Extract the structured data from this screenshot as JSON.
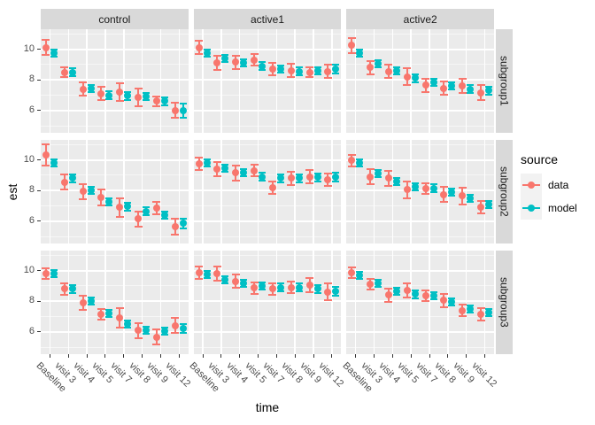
{
  "chart_data": {
    "type": "pointrange-facet-grid",
    "xlabel": "time",
    "ylabel": "est",
    "x_categories": [
      "Baseline",
      "visit 3",
      "visit 4",
      "visit 5",
      "visit 7",
      "visit 8",
      "visit 9",
      "visit 12"
    ],
    "facet_cols": [
      "control",
      "active1",
      "active2"
    ],
    "facet_rows": [
      "subgroup1",
      "subgroup2",
      "subgroup3"
    ],
    "y_ticks": [
      10,
      8,
      6
    ],
    "y_minor_ticks": [
      5,
      7,
      9,
      11
    ],
    "ylim": [
      4.55,
      11.3
    ],
    "grid": true,
    "legend": {
      "title": "source",
      "position": "right",
      "entries": [
        {
          "label": "data",
          "color": "#F8766D"
        },
        {
          "label": "model",
          "color": "#00BFC4"
        }
      ]
    },
    "panels": [
      {
        "facet_col": "control",
        "facet_row": "subgroup1",
        "series": [
          {
            "name": "data",
            "est": [
              10.1,
              8.5,
              7.4,
              7.1,
              7.2,
              6.85,
              6.6,
              6.0
            ],
            "lo": [
              9.55,
              8.1,
              6.9,
              6.6,
              6.55,
              6.2,
              6.25,
              5.45
            ],
            "hi": [
              10.65,
              8.9,
              7.9,
              7.6,
              7.85,
              7.5,
              6.95,
              6.55
            ]
          },
          {
            "name": "model",
            "est": [
              9.75,
              8.5,
              7.45,
              7.0,
              6.95,
              6.9,
              6.6,
              6.0
            ],
            "lo": [
              9.45,
              8.2,
              7.15,
              6.7,
              6.65,
              6.6,
              6.3,
              5.5
            ],
            "hi": [
              10.05,
              8.8,
              7.75,
              7.3,
              7.25,
              7.2,
              6.9,
              6.5
            ]
          }
        ]
      },
      {
        "facet_col": "active1",
        "facet_row": "subgroup1",
        "series": [
          {
            "name": "data",
            "est": [
              10.1,
              9.1,
              9.15,
              9.3,
              8.7,
              8.6,
              8.5,
              8.55
            ],
            "lo": [
              9.6,
              8.6,
              8.65,
              8.85,
              8.25,
              8.1,
              8.1,
              8.05
            ],
            "hi": [
              10.6,
              9.6,
              9.65,
              9.75,
              9.15,
              9.1,
              8.9,
              9.05
            ]
          },
          {
            "name": "model",
            "est": [
              9.75,
              9.4,
              9.1,
              8.9,
              8.7,
              8.55,
              8.6,
              8.7
            ],
            "lo": [
              9.45,
              9.1,
              8.8,
              8.6,
              8.4,
              8.25,
              8.3,
              8.35
            ],
            "hi": [
              10.05,
              9.7,
              9.4,
              9.2,
              9.0,
              8.85,
              8.9,
              9.05
            ]
          }
        ]
      },
      {
        "facet_col": "active2",
        "facet_row": "subgroup1",
        "series": [
          {
            "name": "data",
            "est": [
              10.25,
              8.8,
              8.55,
              8.2,
              7.65,
              7.45,
              7.6,
              7.15
            ],
            "lo": [
              9.7,
              8.3,
              8.05,
              7.6,
              7.15,
              6.95,
              7.1,
              6.6
            ],
            "hi": [
              10.8,
              9.3,
              9.05,
              8.8,
              8.15,
              7.95,
              8.1,
              7.7
            ]
          },
          {
            "name": "model",
            "est": [
              9.75,
              9.05,
              8.6,
              8.1,
              7.85,
              7.6,
              7.4,
              7.3
            ],
            "lo": [
              9.45,
              8.75,
              8.3,
              7.8,
              7.55,
              7.3,
              7.1,
              7.0
            ],
            "hi": [
              10.05,
              9.35,
              8.9,
              8.4,
              8.15,
              7.9,
              7.7,
              7.6
            ]
          }
        ]
      },
      {
        "facet_col": "control",
        "facet_row": "subgroup2",
        "series": [
          {
            "name": "data",
            "est": [
              10.3,
              8.55,
              7.95,
              7.55,
              6.9,
              6.15,
              6.85,
              5.65
            ],
            "lo": [
              9.55,
              8.0,
              7.4,
              7.0,
              6.25,
              5.6,
              6.4,
              5.05
            ],
            "hi": [
              11.05,
              9.1,
              8.5,
              8.1,
              7.55,
              6.7,
              7.3,
              6.25
            ]
          },
          {
            "name": "model",
            "est": [
              9.8,
              8.8,
              8.0,
              7.25,
              6.95,
              6.65,
              6.4,
              5.85
            ],
            "lo": [
              9.5,
              8.5,
              7.7,
              6.95,
              6.65,
              6.35,
              6.1,
              5.5
            ],
            "hi": [
              10.1,
              9.1,
              8.3,
              7.55,
              7.25,
              6.95,
              6.7,
              6.2
            ]
          }
        ]
      },
      {
        "facet_col": "active1",
        "facet_row": "subgroup2",
        "series": [
          {
            "name": "data",
            "est": [
              9.75,
              9.4,
              9.15,
              9.3,
              8.2,
              8.8,
              8.9,
              8.7
            ],
            "lo": [
              9.3,
              8.9,
              8.6,
              8.85,
              7.75,
              8.3,
              8.4,
              8.25
            ],
            "hi": [
              10.2,
              9.9,
              9.7,
              9.75,
              8.65,
              9.3,
              9.4,
              9.15
            ]
          },
          {
            "name": "model",
            "est": [
              9.8,
              9.45,
              9.15,
              8.9,
              8.8,
              8.8,
              8.85,
              8.9
            ],
            "lo": [
              9.5,
              9.15,
              8.85,
              8.6,
              8.5,
              8.5,
              8.55,
              8.55
            ],
            "hi": [
              10.1,
              9.75,
              9.45,
              9.2,
              9.1,
              9.1,
              9.15,
              9.25
            ]
          }
        ]
      },
      {
        "facet_col": "active2",
        "facet_row": "subgroup2",
        "series": [
          {
            "name": "data",
            "est": [
              9.95,
              8.9,
              8.8,
              8.05,
              8.15,
              7.75,
              7.65,
              6.9
            ],
            "lo": [
              9.5,
              8.35,
              8.25,
              7.45,
              7.75,
              7.2,
              7.05,
              6.45
            ],
            "hi": [
              10.4,
              9.45,
              9.35,
              8.65,
              8.55,
              8.3,
              8.25,
              7.35
            ]
          },
          {
            "name": "model",
            "est": [
              9.8,
              9.1,
              8.6,
              8.25,
              8.15,
              7.9,
              7.5,
              7.1
            ],
            "lo": [
              9.5,
              8.8,
              8.3,
              7.95,
              7.85,
              7.6,
              7.2,
              6.8
            ],
            "hi": [
              10.1,
              9.4,
              8.9,
              8.55,
              8.45,
              8.2,
              7.8,
              7.4
            ]
          }
        ]
      },
      {
        "facet_col": "control",
        "facet_row": "subgroup3",
        "series": [
          {
            "name": "data",
            "est": [
              9.8,
              8.8,
              7.9,
              7.15,
              6.9,
              6.1,
              5.65,
              6.4
            ],
            "lo": [
              9.4,
              8.35,
              7.4,
              6.75,
              6.2,
              5.55,
              5.1,
              5.85
            ],
            "hi": [
              10.2,
              9.25,
              8.4,
              7.55,
              7.6,
              6.65,
              6.2,
              6.95
            ]
          },
          {
            "name": "model",
            "est": [
              9.8,
              8.8,
              8.0,
              7.2,
              6.5,
              6.1,
              6.05,
              6.2
            ],
            "lo": [
              9.5,
              8.5,
              7.7,
              6.9,
              6.2,
              5.8,
              5.75,
              5.85
            ],
            "hi": [
              10.1,
              9.1,
              8.3,
              7.5,
              6.8,
              6.4,
              6.35,
              6.55
            ]
          }
        ]
      },
      {
        "facet_col": "active1",
        "facet_row": "subgroup3",
        "series": [
          {
            "name": "data",
            "est": [
              9.85,
              9.8,
              9.3,
              8.85,
              8.8,
              8.9,
              9.05,
              8.6
            ],
            "lo": [
              9.4,
              9.3,
              8.8,
              8.4,
              8.35,
              8.45,
              8.55,
              8.0
            ],
            "hi": [
              10.3,
              10.3,
              9.8,
              9.3,
              9.25,
              9.35,
              9.55,
              9.2
            ]
          },
          {
            "name": "model",
            "est": [
              9.75,
              9.4,
              9.15,
              9.0,
              8.9,
              8.9,
              8.8,
              8.65
            ],
            "lo": [
              9.45,
              9.1,
              8.85,
              8.7,
              8.6,
              8.6,
              8.5,
              8.3
            ],
            "hi": [
              10.05,
              9.7,
              9.45,
              9.3,
              9.2,
              9.2,
              9.1,
              9.0
            ]
          }
        ]
      },
      {
        "facet_col": "active2",
        "facet_row": "subgroup3",
        "series": [
          {
            "name": "data",
            "est": [
              9.85,
              9.1,
              8.4,
              8.7,
              8.35,
              8.05,
              7.4,
              7.15
            ],
            "lo": [
              9.45,
              8.7,
              7.9,
              8.2,
              7.95,
              7.55,
              6.95,
              6.7
            ],
            "hi": [
              10.25,
              9.5,
              8.9,
              9.2,
              8.75,
              8.55,
              7.85,
              7.6
            ]
          },
          {
            "name": "model",
            "est": [
              9.7,
              9.15,
              8.65,
              8.45,
              8.35,
              7.95,
              7.5,
              7.25
            ],
            "lo": [
              9.4,
              8.85,
              8.35,
              8.15,
              8.05,
              7.65,
              7.2,
              6.95
            ],
            "hi": [
              10.0,
              9.45,
              8.95,
              8.75,
              8.65,
              8.25,
              7.8,
              7.55
            ]
          }
        ]
      }
    ],
    "colors": {
      "panel_bg": "#EBEBEB",
      "strip_bg": "#D9D9D9",
      "grid": "#FFFFFF",
      "tick_text": "#4D4D4D",
      "series_data": "#F8766D",
      "series_model": "#00BFC4"
    }
  }
}
